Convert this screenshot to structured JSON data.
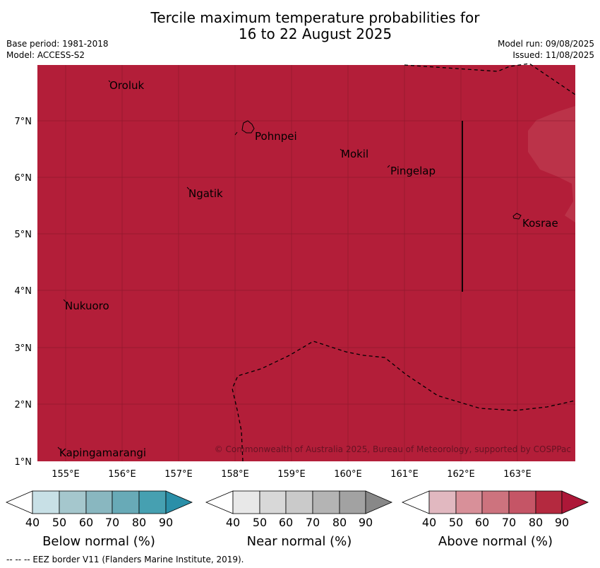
{
  "title_line1": "Tercile maximum temperature probabilities for",
  "title_line2": "16 to 22 August 2025",
  "meta_left": [
    "Base period: 1981-2018",
    "Model: ACCESS-S2"
  ],
  "meta_right": [
    "Model run: 09/08/2025",
    "Issued: 11/08/2025"
  ],
  "copyright": "© Commonwealth of Australia 2025, Bureau of Meteorology, supported by COSPPac",
  "footer": "-- -- -- EEZ border V11 (Flanders Marine Institute, 2019).",
  "colors": {
    "map_fill": "#b31e39",
    "map_fill_light": "#bb3349",
    "below": [
      "#ffffff",
      "#c8e0e6",
      "#a5c7cd",
      "#89b7c0",
      "#68aab7",
      "#46a0b1",
      "#2a8fa8"
    ],
    "near": [
      "#ffffff",
      "#e8e8e8",
      "#d8d8d8",
      "#cacaca",
      "#b4b4b4",
      "#a2a2a2",
      "#888888"
    ],
    "above": [
      "#ffffff",
      "#e1b8c0",
      "#d89099",
      "#cd737e",
      "#c55566",
      "#b4293f",
      "#ad1738"
    ]
  },
  "map": {
    "lon_labels": [
      "155°E",
      "156°E",
      "157°E",
      "158°E",
      "159°E",
      "160°E",
      "161°E",
      "162°E",
      "163°E"
    ],
    "lat_labels": [
      "7°N",
      "6°N",
      "5°N",
      "4°N",
      "3°N",
      "2°N",
      "1°N"
    ],
    "places": [
      "Oroluk",
      "Pohnpei",
      "Mokil",
      "Pingelap",
      "Ngatik",
      "Kosrae",
      "Nukuoro",
      "Kapingamarangi"
    ]
  },
  "legend": {
    "ticks": [
      "40",
      "50",
      "60",
      "70",
      "80",
      "90"
    ],
    "labels": [
      "Below normal (%)",
      "Near normal (%)",
      "Above normal (%)"
    ]
  }
}
